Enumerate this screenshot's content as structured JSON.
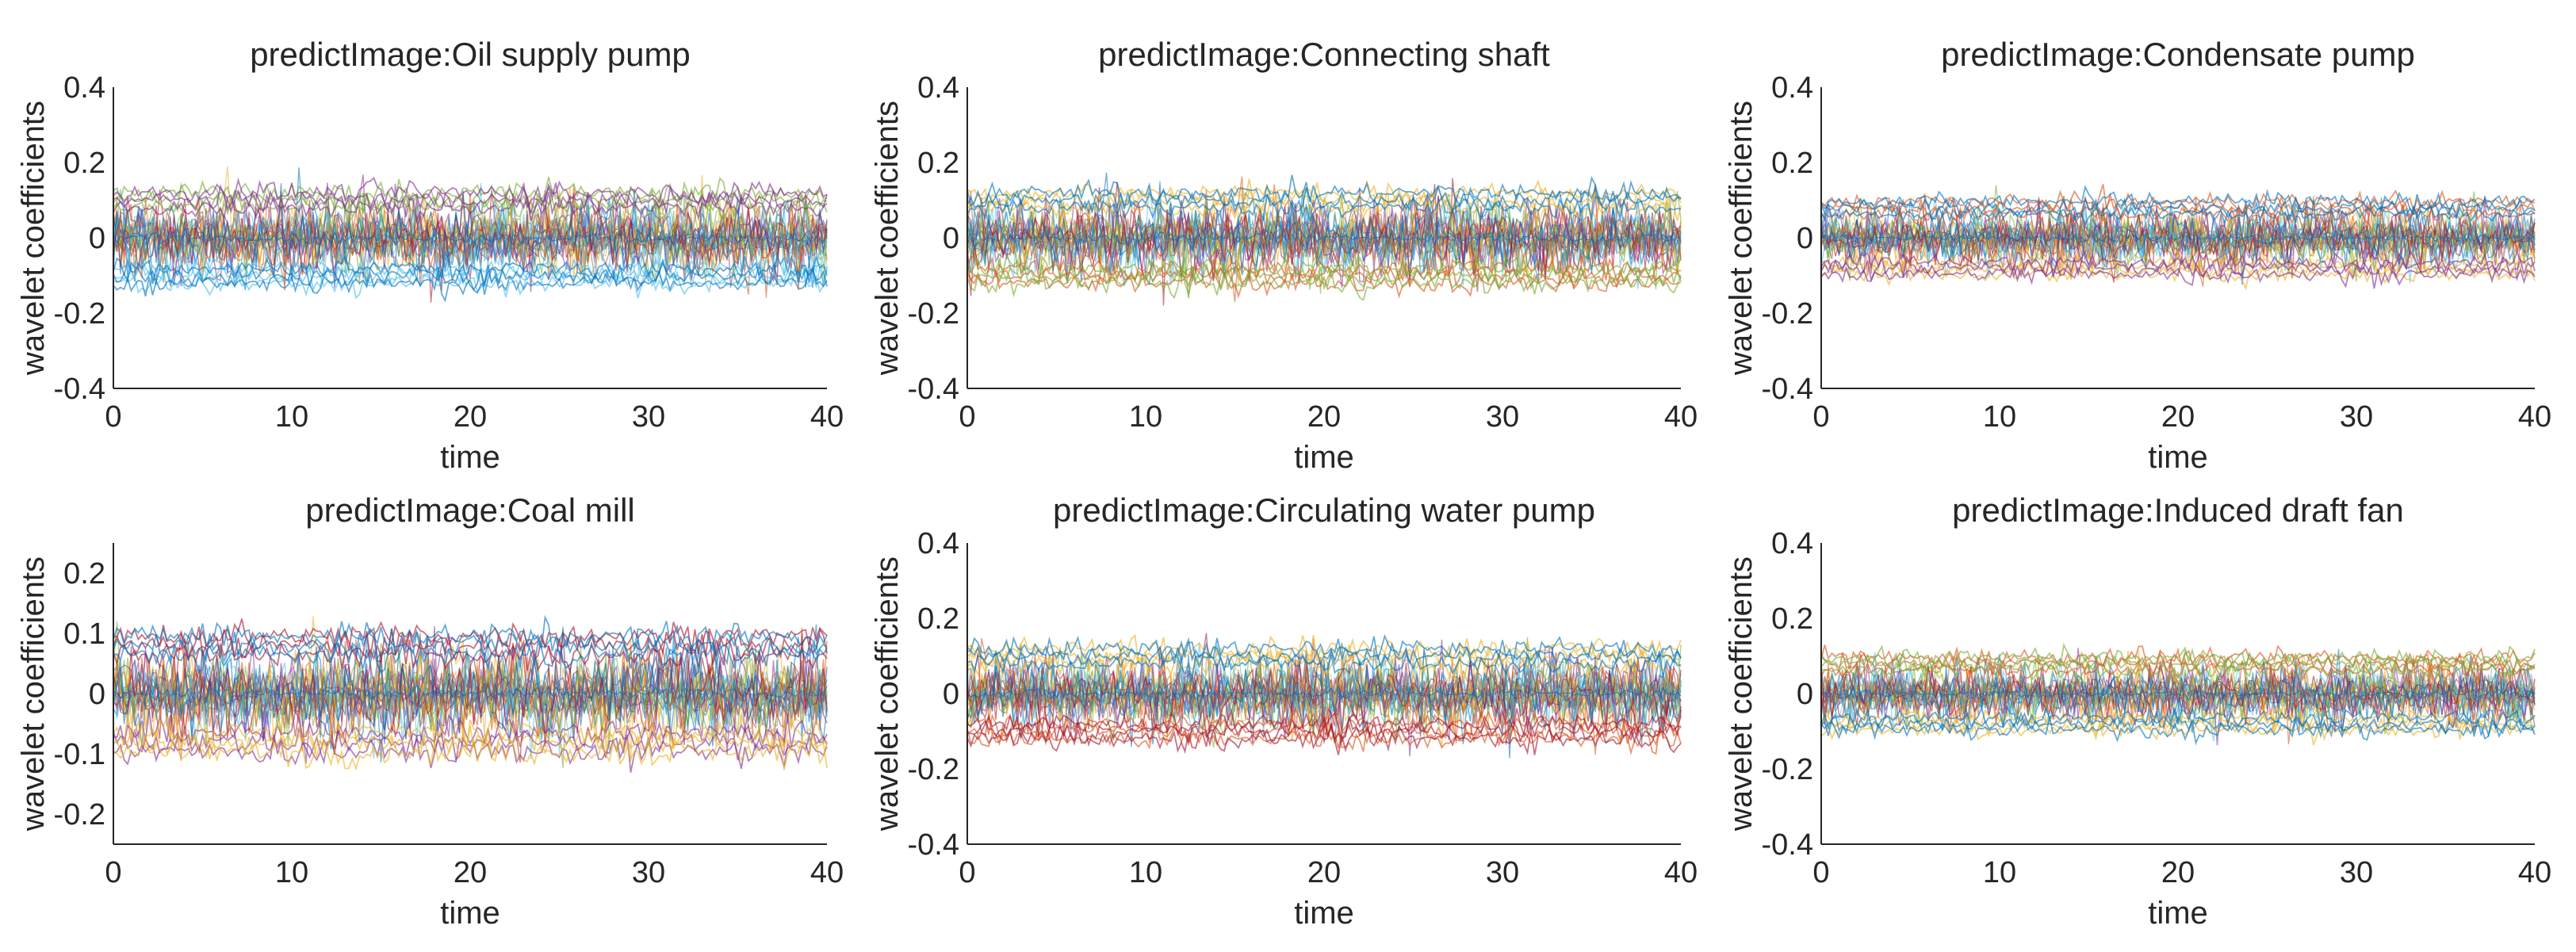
{
  "figure": {
    "colors": [
      "#0072BD",
      "#D95319",
      "#EDB120",
      "#7E2F8E",
      "#77AC30",
      "#4DBEEE",
      "#A2142F"
    ]
  },
  "chart_data": [
    {
      "type": "line",
      "title": "predictImage:Oil supply pump",
      "xlabel": "time",
      "ylabel": "wavelet coefficients",
      "xlim": [
        0,
        40
      ],
      "ylim": [
        -0.4,
        0.4
      ],
      "xticks": [
        0,
        10,
        20,
        30,
        40
      ],
      "xtick_labels": [
        "0",
        "10",
        "20",
        "30",
        "40"
      ],
      "yticks": [
        -0.4,
        -0.2,
        0,
        0.2,
        0.4
      ],
      "ytick_labels": [
        "-0.4",
        "-0.2",
        "0",
        "0.2",
        "0.4"
      ],
      "envelope": {
        "outer": 0.2,
        "inner": 0.1,
        "peak": 0.3
      },
      "band_colors": [
        4,
        5,
        3,
        0
      ]
    },
    {
      "type": "line",
      "title": "predictImage:Connecting shaft",
      "xlabel": "time",
      "ylabel": "wavelet coefficients",
      "xlim": [
        0,
        40
      ],
      "ylim": [
        -0.4,
        0.4
      ],
      "xticks": [
        0,
        10,
        20,
        30,
        40
      ],
      "xtick_labels": [
        "0",
        "10",
        "20",
        "30",
        "40"
      ],
      "yticks": [
        -0.4,
        -0.2,
        0,
        0.2,
        0.4
      ],
      "ytick_labels": [
        "-0.4",
        "-0.2",
        "0",
        "0.2",
        "0.4"
      ],
      "envelope": {
        "outer": 0.2,
        "inner": 0.1,
        "peak": 0.31
      },
      "band_colors": [
        2,
        1,
        0,
        4
      ]
    },
    {
      "type": "line",
      "title": "predictImage:Condensate pump",
      "xlabel": "time",
      "ylabel": "wavelet coefficients",
      "xlim": [
        0,
        40
      ],
      "ylim": [
        -0.4,
        0.4
      ],
      "xticks": [
        0,
        10,
        20,
        30,
        40
      ],
      "xtick_labels": [
        "0",
        "10",
        "20",
        "30",
        "40"
      ],
      "yticks": [
        -0.4,
        -0.2,
        0,
        0.2,
        0.4
      ],
      "ytick_labels": [
        "-0.4",
        "-0.2",
        "0",
        "0.2",
        "0.4"
      ],
      "envelope": {
        "outer": 0.16,
        "inner": 0.08,
        "peak": 0.28
      },
      "band_colors": [
        1,
        2,
        0,
        3
      ]
    },
    {
      "type": "line",
      "title": "predictImage:Coal mill",
      "xlabel": "time",
      "ylabel": "wavelet coefficients",
      "xlim": [
        0,
        40
      ],
      "ylim": [
        -0.25,
        0.25
      ],
      "xticks": [
        0,
        10,
        20,
        30,
        40
      ],
      "xtick_labels": [
        "0",
        "10",
        "20",
        "30",
        "40"
      ],
      "yticks": [
        -0.2,
        -0.1,
        0,
        0.1,
        0.2
      ],
      "ytick_labels": [
        "-0.2",
        "-0.1",
        "0",
        "0.1",
        "0.2"
      ],
      "envelope": {
        "outer": 0.15,
        "inner": 0.08,
        "peak": 0.23
      },
      "band_colors": [
        6,
        3,
        0,
        2
      ]
    },
    {
      "type": "line",
      "title": "predictImage:Circulating water pump",
      "xlabel": "time",
      "ylabel": "wavelet coefficients",
      "xlim": [
        0,
        40
      ],
      "ylim": [
        -0.4,
        0.4
      ],
      "xticks": [
        0,
        10,
        20,
        30,
        40
      ],
      "xtick_labels": [
        "0",
        "10",
        "20",
        "30",
        "40"
      ],
      "yticks": [
        -0.4,
        -0.2,
        0,
        0.2,
        0.4
      ],
      "ytick_labels": [
        "-0.4",
        "-0.2",
        "0",
        "0.2",
        "0.4"
      ],
      "envelope": {
        "outer": 0.2,
        "inner": 0.1,
        "peak": 0.38
      },
      "band_colors": [
        2,
        1,
        0,
        6
      ]
    },
    {
      "type": "line",
      "title": "predictImage:Induced draft fan",
      "xlabel": "time",
      "ylabel": "wavelet coefficients",
      "xlim": [
        0,
        40
      ],
      "ylim": [
        -0.4,
        0.4
      ],
      "xticks": [
        0,
        10,
        20,
        30,
        40
      ],
      "xtick_labels": [
        "0",
        "10",
        "20",
        "30",
        "40"
      ],
      "yticks": [
        -0.4,
        -0.2,
        0,
        0.2,
        0.4
      ],
      "ytick_labels": [
        "-0.4",
        "-0.2",
        "0",
        "0.2",
        "0.4"
      ],
      "envelope": {
        "outer": 0.16,
        "inner": 0.08,
        "peak": 0.3
      },
      "band_colors": [
        1,
        2,
        4,
        0
      ]
    }
  ]
}
